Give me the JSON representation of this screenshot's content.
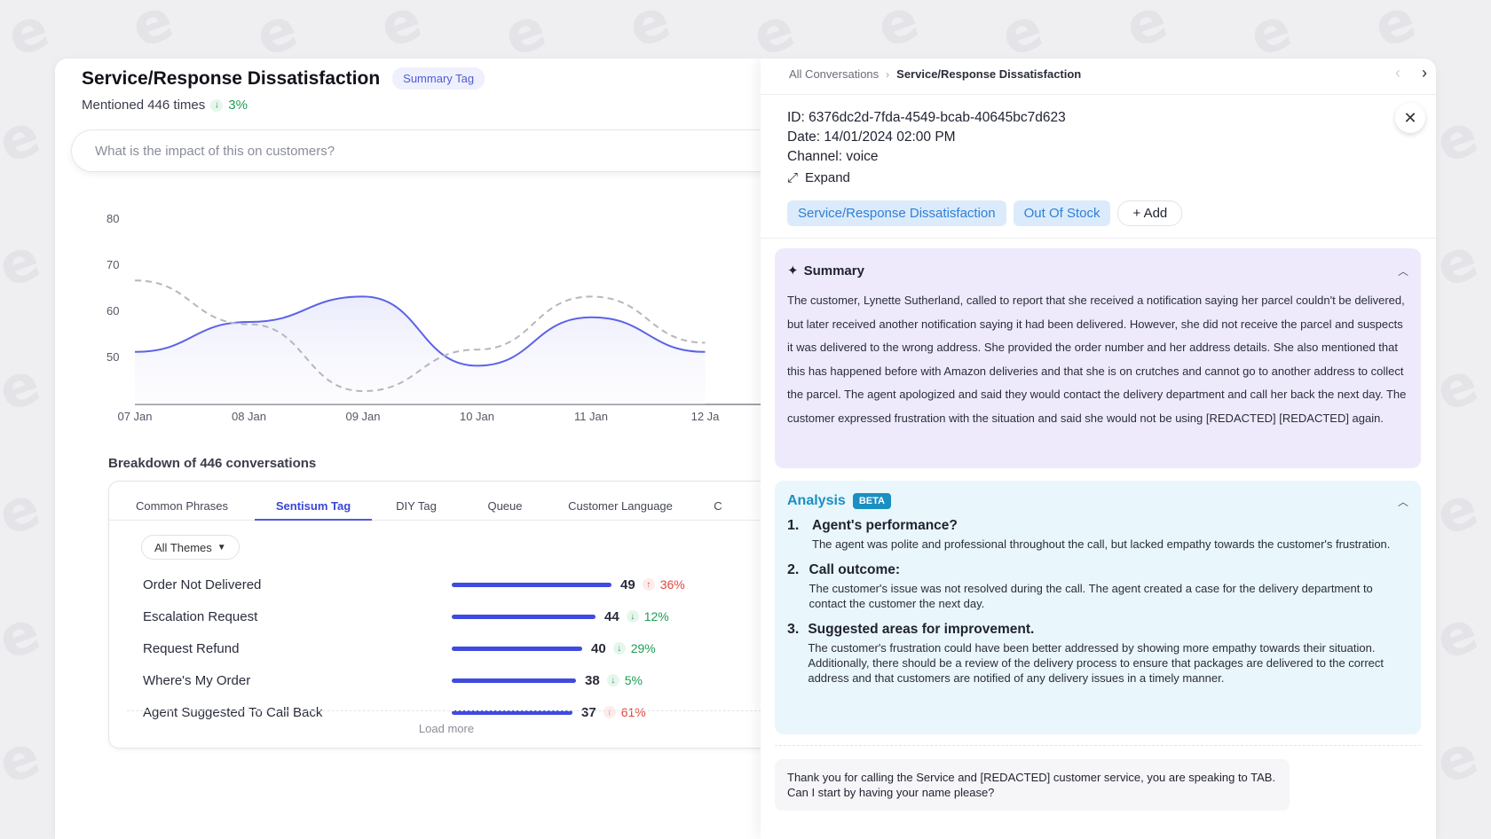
{
  "header": {
    "title": "Service/Response Dissatisfaction",
    "tag_label": "Summary Tag",
    "mentioned_text": "Mentioned 446 times",
    "mentioned_change": "3%"
  },
  "search": {
    "placeholder": "What is the impact of this on customers?"
  },
  "chart_data": {
    "type": "line",
    "categories": [
      "07 Jan",
      "08 Jan",
      "09 Jan",
      "10 Jan",
      "11 Jan",
      "12 Ja"
    ],
    "y_ticks": [
      "80",
      "70",
      "60",
      "50"
    ],
    "ylim": [
      40,
      80
    ],
    "series": [
      {
        "values": [
          51,
          57.5,
          63,
          48,
          58.5,
          51
        ],
        "style": "solid",
        "color": "#5b63e6"
      },
      {
        "values": [
          66.5,
          57,
          42.5,
          51.5,
          63,
          53
        ],
        "style": "dashed",
        "color": "#b5b7bf"
      }
    ],
    "grid": false
  },
  "breakdown": {
    "title": "Breakdown of 446 conversations",
    "tabs": [
      "Common Phrases",
      "Sentisum Tag",
      "DIY Tag",
      "Queue",
      "Customer Language",
      "C"
    ],
    "active_tab": "Sentisum Tag",
    "filter_label": "All Themes",
    "rows": [
      {
        "label": "Order Not Delivered",
        "count": "49",
        "change": "36%",
        "direction": "up",
        "value": 49
      },
      {
        "label": "Escalation Request",
        "count": "44",
        "change": "12%",
        "direction": "down",
        "value": 44
      },
      {
        "label": "Request Refund",
        "count": "40",
        "change": "29%",
        "direction": "down",
        "value": 40
      },
      {
        "label": "Where's My Order",
        "count": "38",
        "change": "5%",
        "direction": "down",
        "value": 38
      },
      {
        "label": "Agent Suggested To Call Back",
        "count": "37",
        "change": "61%",
        "direction": "up",
        "value": 37
      }
    ],
    "load_more": "Load more"
  },
  "conversation": {
    "breadcrumb_root": "All Conversations",
    "breadcrumb_current": "Service/Response Dissatisfaction",
    "id_line": "ID: 6376dc2d-7fda-4549-bcab-40645bc7d623",
    "date_line": "Date: 14/01/2024 02:00 PM",
    "channel_line": "Channel: voice",
    "expand_label": "Expand",
    "tags": [
      "Service/Response Dissatisfaction",
      "Out Of Stock"
    ],
    "add_label": "+ Add",
    "summary_title": "Summary",
    "summary_text": "The customer, Lynette Sutherland, called to report that she received a notification saying her parcel couldn't be delivered, but later received another notification saying it had been delivered. However, she did not receive the parcel and suspects it was delivered to the wrong address. She provided the order number and her address details. She also mentioned that this has happened before with Amazon deliveries and that she is on crutches and cannot go to another address to collect the parcel. The agent apologized and said they would contact the delivery department and call her back the next day. The customer expressed frustration with the situation and said she would not be using [REDACTED] [REDACTED] again.",
    "analysis_title": "Analysis",
    "analysis_badge": "BETA",
    "analysis_items": [
      {
        "num": "1.",
        "heading": "Agent's performance?",
        "text": "The agent was polite and professional throughout the call, but lacked empathy towards the customer's frustration."
      },
      {
        "num": "2.",
        "heading": "Call outcome:",
        "text": "The customer's issue was not resolved during the call. The agent created a case for the delivery department to contact the customer the next day."
      },
      {
        "num": "3.",
        "heading": "Suggested areas for improvement.",
        "text": "The customer's frustration could have been better addressed by showing more empathy towards their situation. Additionally, there should be a review of the delivery process to ensure that packages are delivered to the correct address and that customers are notified of any delivery issues in a timely manner."
      }
    ],
    "transcript_text": "Thank you for calling the Service and [REDACTED] customer service, you are speaking to TAB. Can I start by having your name please?"
  },
  "colors": {
    "accent": "#4f5bd5",
    "bar": "#3f4be0",
    "up": "#e0483d",
    "down": "#1f9d55",
    "summary_bg": "#eeeafc",
    "analysis_bg": "#e9f6fc"
  }
}
